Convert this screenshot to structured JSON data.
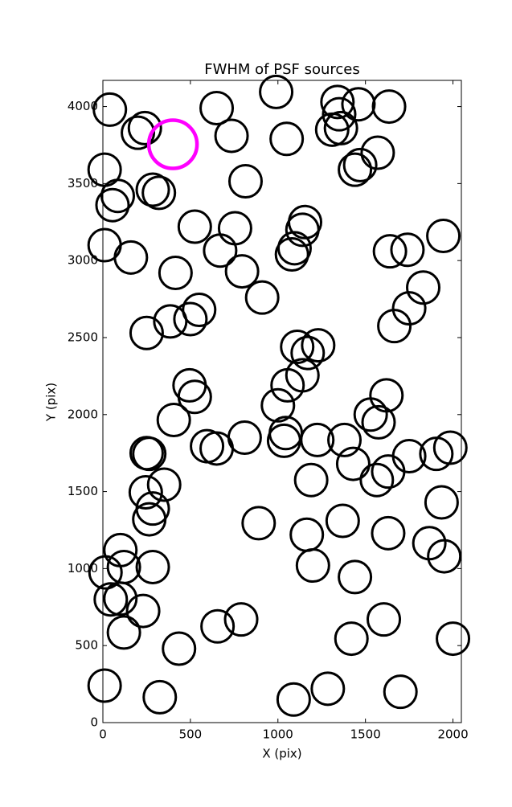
{
  "chart_data": {
    "type": "scatter",
    "title": "FWHM of PSF sources",
    "x_label": "X (pix)",
    "y_label": "Y (pix)",
    "xlim": [
      0,
      2048
    ],
    "ylim": [
      0,
      4170
    ],
    "xticks": [
      0,
      500,
      1000,
      1500,
      2000
    ],
    "yticks": [
      0,
      500,
      1000,
      1500,
      2000,
      2500,
      3000,
      3500,
      4000
    ],
    "series": [
      {
        "color": "#000000",
        "x": [
          40,
          200,
          240,
          650,
          735,
          990,
          1050,
          1310,
          1340,
          1350,
          1360,
          1460,
          1635,
          1570,
          1470,
          1440,
          10,
          815,
          285,
          320,
          55,
          85,
          525,
          755,
          1155,
          1140,
          10,
          160,
          670,
          1095,
          1080,
          1640,
          1740,
          1945,
          415,
          795,
          910,
          1830,
          1750,
          1665,
          550,
          500,
          385,
          250,
          1110,
          1170,
          1230,
          1140,
          1055,
          495,
          525,
          1000,
          405,
          1620,
          1530,
          1575,
          1045,
          1035,
          1225,
          1380,
          810,
          595,
          650,
          265,
          250,
          1985,
          1905,
          1750,
          1630,
          1565,
          1430,
          1190,
          350,
          245,
          285,
          265,
          1935,
          890,
          1370,
          1165,
          1630,
          1865,
          1950,
          100,
          120,
          285,
          1200,
          15,
          1440,
          45,
          100,
          230,
          120,
          655,
          790,
          1605,
          1420,
          2000,
          435,
          10,
          325,
          1090,
          1285,
          1700
        ],
        "values": [
          3980,
          3830,
          3860,
          3990,
          3810,
          4095,
          3790,
          3850,
          4030,
          3950,
          3860,
          4015,
          4000,
          3700,
          3620,
          3590,
          3590,
          3515,
          3460,
          3440,
          3360,
          3420,
          3220,
          3210,
          3250,
          3200,
          3100,
          3020,
          3065,
          3080,
          3040,
          3060,
          3070,
          3160,
          2920,
          2930,
          2760,
          2825,
          2690,
          2575,
          2680,
          2620,
          2605,
          2530,
          2440,
          2400,
          2450,
          2255,
          2190,
          2190,
          2115,
          2060,
          1965,
          2125,
          2000,
          1950,
          1880,
          1830,
          1835,
          1835,
          1850,
          1795,
          1780,
          1745,
          1750,
          1785,
          1745,
          1730,
          1630,
          1575,
          1680,
          1575,
          1545,
          1495,
          1390,
          1320,
          1430,
          1295,
          1310,
          1220,
          1230,
          1165,
          1080,
          1120,
          1010,
          1010,
          1020,
          975,
          945,
          800,
          805,
          725,
          585,
          625,
          670,
          670,
          545,
          545,
          480,
          240,
          165,
          150,
          220,
          200
        ]
      },
      {
        "color": "#ff00ff",
        "x": [
          400
        ],
        "values": [
          3755
        ]
      }
    ]
  }
}
